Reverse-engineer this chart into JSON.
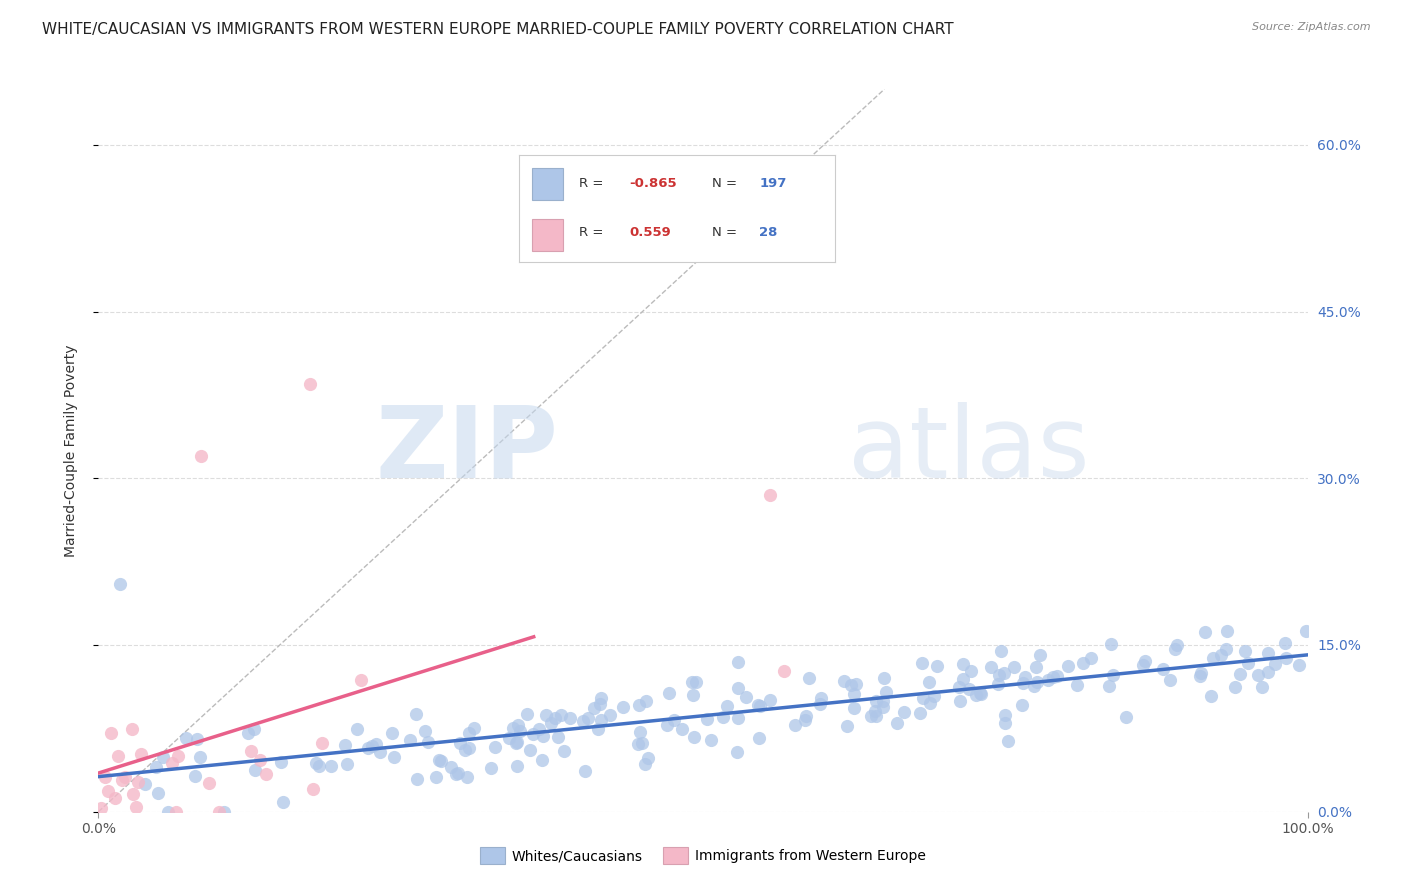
{
  "title": "WHITE/CAUCASIAN VS IMMIGRANTS FROM WESTERN EUROPE MARRIED-COUPLE FAMILY POVERTY CORRELATION CHART",
  "source": "Source: ZipAtlas.com",
  "ylabel": "Married-Couple Family Poverty",
  "xlabel": "",
  "xlim": [
    0.0,
    1.0
  ],
  "ylim": [
    0.0,
    0.65
  ],
  "yticks": [
    0.0,
    0.15,
    0.3,
    0.45,
    0.6
  ],
  "ytick_labels": [
    "0.0%",
    "15.0%",
    "30.0%",
    "45.0%",
    "60.0%"
  ],
  "xticks": [
    0.0,
    1.0
  ],
  "xtick_labels": [
    "0.0%",
    "100.0%"
  ],
  "blue_R": -0.865,
  "blue_N": 197,
  "pink_R": 0.559,
  "pink_N": 28,
  "blue_color": "#aec6e8",
  "blue_line_color": "#4472c4",
  "pink_color": "#f4b8c8",
  "pink_line_color": "#e8608a",
  "diagonal_color": "#bbbbbb",
  "background_color": "#ffffff",
  "grid_color": "#dddddd",
  "watermark_zip": "ZIP",
  "watermark_atlas": "atlas",
  "legend_labels": [
    "Whites/Caucasians",
    "Immigrants from Western Europe"
  ],
  "title_fontsize": 11,
  "axis_label_fontsize": 10,
  "tick_fontsize": 10,
  "legend_fontsize": 10,
  "right_tick_color": "#4472c4"
}
